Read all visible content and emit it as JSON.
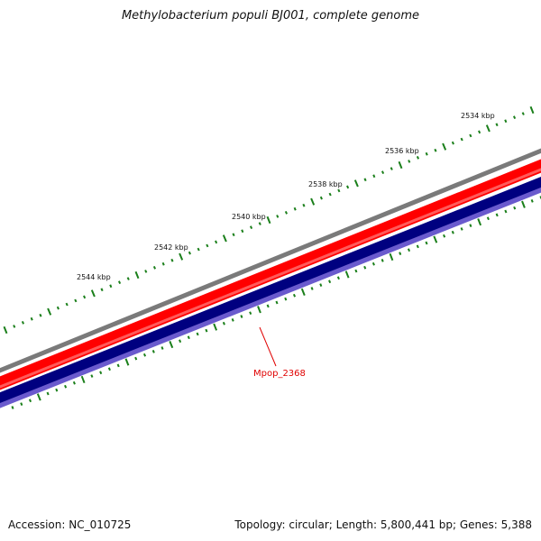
{
  "title": "Methylobacterium populi BJ001, complete genome",
  "footer": {
    "accession": "Accession: NC_010725",
    "summary": "Topology: circular; Length: 5,800,441 bp; Genes: 5,388"
  },
  "scale_labels": [
    "2534 kbp",
    "2536 kbp",
    "2538 kbp",
    "2540 kbp",
    "2542 kbp",
    "2544 kbp"
  ],
  "gene_label": "Mpop_2368",
  "colors": {
    "backbone": "#7a7a7a",
    "forward_strand": "#ff0000",
    "reverse_strand": "#000080",
    "reverse_edge": "#6a5acd",
    "tick": "#1a7f1a",
    "gene_label": "#e00000"
  }
}
